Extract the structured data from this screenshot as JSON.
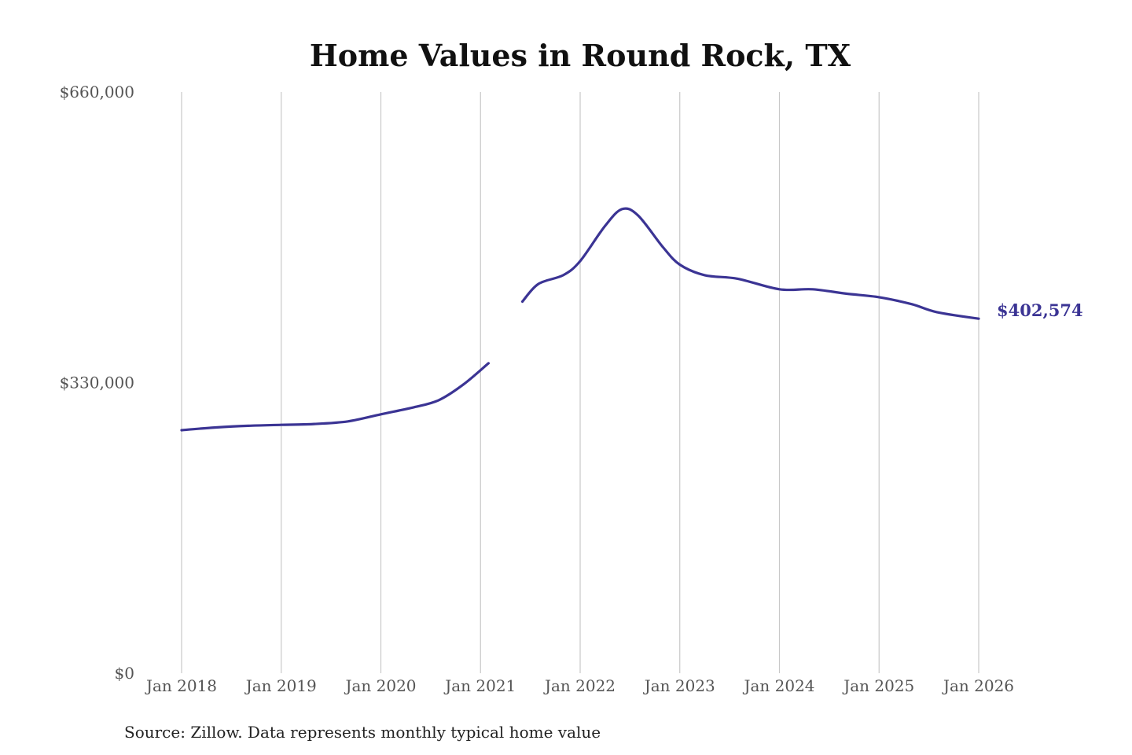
{
  "chart_data": {
    "type": "line",
    "title": "Home Values in Round Rock, TX",
    "xlabel": "",
    "ylabel": "",
    "ylim": [
      0,
      660000
    ],
    "yticks": [
      {
        "value": 0,
        "label": "$0"
      },
      {
        "value": 330000,
        "label": "$330,000"
      },
      {
        "value": 660000,
        "label": "$660,000"
      }
    ],
    "xlim": [
      2018.0,
      2026.0
    ],
    "xticks": [
      {
        "value": 2018,
        "label": "Jan 2018"
      },
      {
        "value": 2019,
        "label": "Jan 2019"
      },
      {
        "value": 2020,
        "label": "Jan 2020"
      },
      {
        "value": 2021,
        "label": "Jan 2021"
      },
      {
        "value": 2022,
        "label": "Jan 2022"
      },
      {
        "value": 2023,
        "label": "Jan 2023"
      },
      {
        "value": 2024,
        "label": "Jan 2024"
      },
      {
        "value": 2025,
        "label": "Jan 2025"
      },
      {
        "value": 2026,
        "label": "Jan 2026"
      }
    ],
    "grid": "vertical",
    "series": [
      {
        "color": "#3b3494",
        "segments": [
          [
            [
              2018.0,
              276000
            ],
            [
              2018.33,
              279000
            ],
            [
              2018.67,
              281000
            ],
            [
              2019.0,
              282000
            ],
            [
              2019.33,
              283000
            ],
            [
              2019.67,
              286000
            ],
            [
              2020.0,
              294000
            ],
            [
              2020.33,
              302000
            ],
            [
              2020.58,
              310000
            ],
            [
              2020.83,
              328000
            ],
            [
              2021.08,
              352000
            ]
          ],
          [
            [
              2021.42,
              422000
            ],
            [
              2021.58,
              442000
            ],
            [
              2021.83,
              452000
            ],
            [
              2022.0,
              468000
            ],
            [
              2022.25,
              508000
            ],
            [
              2022.42,
              527000
            ],
            [
              2022.58,
              520000
            ],
            [
              2022.83,
              484000
            ],
            [
              2023.0,
              464000
            ],
            [
              2023.25,
              452000
            ],
            [
              2023.58,
              448000
            ],
            [
              2024.0,
              436000
            ],
            [
              2024.33,
              436000
            ],
            [
              2024.67,
              431000
            ],
            [
              2025.0,
              427000
            ],
            [
              2025.33,
              419000
            ],
            [
              2025.58,
              410000
            ],
            [
              2026.0,
              402574
            ]
          ]
        ]
      }
    ],
    "end_label": "$402,574",
    "source": "Source: Zillow. Data represents monthly typical home value"
  }
}
